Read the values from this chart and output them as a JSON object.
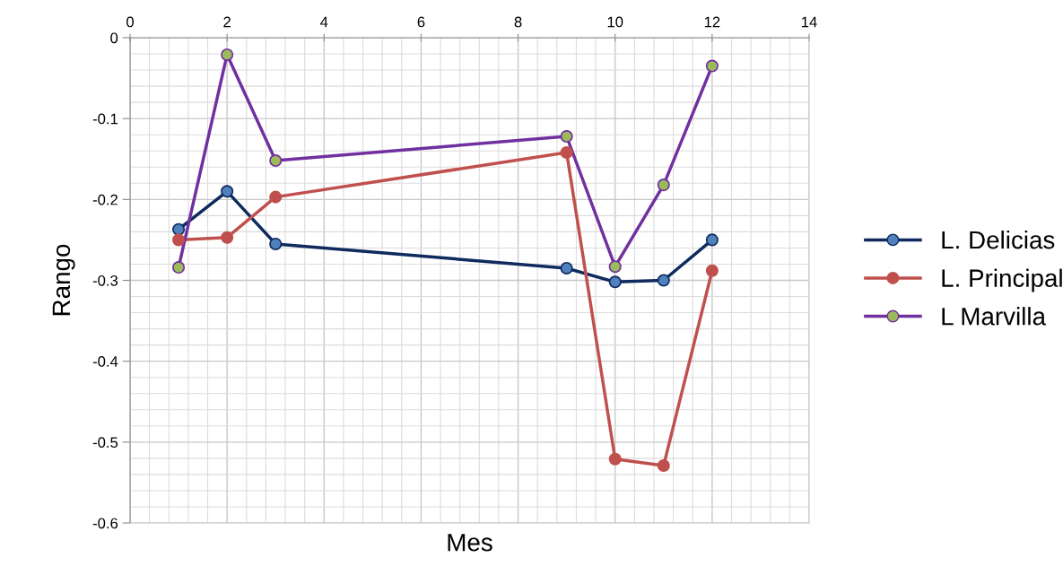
{
  "chart_data": {
    "type": "line",
    "xlabel": "Mes",
    "ylabel": "Rango",
    "x": [
      1,
      2,
      3,
      9,
      10,
      11,
      12
    ],
    "series": [
      {
        "name": "L. Delicias",
        "color": "#0f2a5e",
        "colors": [
          "#4f81bd",
          "#4f81bd",
          "#4f81bd",
          "#4f81bd",
          "#4f81bd",
          "#4f81bd",
          "#4f81bd"
        ],
        "values": [
          -0.237,
          -0.19,
          -0.255,
          -0.285,
          -0.302,
          -0.3,
          -0.25
        ]
      },
      {
        "name": "L. Principal",
        "color": "#c0504d",
        "colors": [
          "#c0504d",
          "#c0504d",
          "#c0504d",
          "#c0504d",
          "#c0504d",
          "#c0504d",
          "#c0504d"
        ],
        "values": [
          -0.25,
          -0.247,
          -0.197,
          -0.142,
          -0.521,
          -0.529,
          -0.288
        ]
      },
      {
        "name": "L Marvilla",
        "color": "#7030a0",
        "colors": [
          "#9bbb59",
          "#9bbb59",
          "#9bbb59",
          "#9bbb59",
          "#9bbb59",
          "#9bbb59",
          "#9bbb59"
        ],
        "values": [
          -0.284,
          -0.021,
          -0.152,
          -0.122,
          -0.283,
          -0.182,
          -0.035
        ]
      }
    ],
    "xlim": [
      0,
      14
    ],
    "xticks": [
      0,
      2,
      4,
      6,
      8,
      10,
      12,
      14
    ],
    "ylim": [
      -0.6,
      0
    ],
    "yticks": [
      {
        "value": -0.6,
        "label": "-0.6"
      },
      {
        "value": -0.5,
        "label": "-0.5"
      },
      {
        "value": -0.4,
        "label": "-0.4"
      },
      {
        "value": -0.3,
        "label": "-0.3"
      },
      {
        "value": -0.2,
        "label": "-0.2"
      },
      {
        "value": -0.1,
        "label": "-0.1"
      },
      0
    ],
    "grid": true,
    "legend": "right",
    "marker": "circle",
    "line_style": "solid"
  }
}
